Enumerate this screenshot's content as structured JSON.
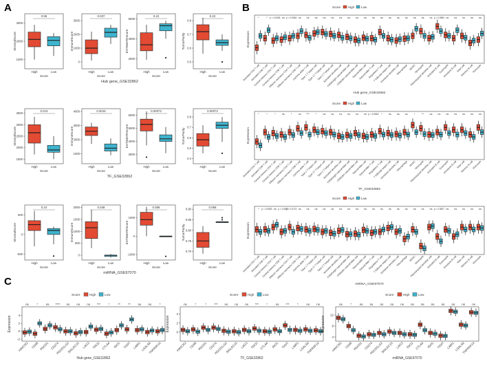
{
  "panel_labels": {
    "a": "A",
    "b": "B",
    "c": "C"
  },
  "colors": {
    "high": "#e34a33",
    "low": "#3eb4cf",
    "axis": "#444444",
    "text": "#333333"
  },
  "chart_data": {
    "a": {
      "type": "boxplot",
      "groups": [
        "High",
        "Low"
      ],
      "xlabel": "Score",
      "rows": [
        {
          "title": "Hub gene_GSE32862",
          "plots": [
            {
              "ylabel": "StromalScore",
              "p": "0.96",
              "ticks": [
                "1000",
                "2000",
                "3000"
              ],
              "ylim": [
                500,
                3500
              ],
              "boxes": [
                [
                  1000,
                  1700,
                  2100,
                  2500,
                  2900
                ],
                [
                  1200,
                  1750,
                  2050,
                  2250,
                  2450
                ]
              ],
              "outliers": [
                [],
                []
              ]
            },
            {
              "ylabel": "ImmuneScore",
              "p": "0.037",
              "ticks": [
                "0",
                "1000",
                "2000",
                "3000"
              ],
              "ylim": [
                -500,
                3500
              ],
              "boxes": [
                [
                  100,
                  600,
                  1000,
                  1600,
                  2200
                ],
                [
                  1300,
                  1800,
                  2150,
                  2450,
                  2700
                ]
              ],
              "outliers": [
                [],
                []
              ]
            },
            {
              "ylabel": "ESTIMATEScore",
              "p": "0.22",
              "ticks": [
                "2000",
                "4000",
                "6000"
              ],
              "ylim": [
                1000,
                6500
              ],
              "boxes": [
                [
                  1900,
                  2800,
                  3400,
                  4600,
                  5400
                ],
                [
                  4000,
                  4800,
                  5300,
                  5500,
                  5800
                ]
              ],
              "outliers": [
                [],
                [
                  2100
                ]
              ]
            },
            {
              "ylabel": "TumorPurity",
              "p": "0.22",
              "ticks": [
                "0.5",
                "0.6",
                "0.7",
                "0.8"
              ],
              "ylim": [
                0.45,
                0.85
              ],
              "boxes": [
                [
                  0.56,
                  0.66,
                  0.72,
                  0.77,
                  0.82
                ],
                [
                  0.58,
                  0.62,
                  0.64,
                  0.66,
                  0.7
                ]
              ],
              "outliers": [
                [],
                [
                  0.5
                ]
              ]
            }
          ]
        },
        {
          "title": "TF_GSE32862",
          "plots": [
            {
              "ylabel": "StromalScore",
              "p": "0.013",
              "ticks": [
                "1500",
                "2000",
                "2500",
                "3000",
                "3500"
              ],
              "ylim": [
                1300,
                3700
              ],
              "boxes": [
                [
                  1700,
                  2200,
                  2650,
                  3000,
                  3350
                ],
                [
                  1500,
                  1800,
                  1900,
                  2100,
                  2500
                ]
              ],
              "outliers": [
                [],
                []
              ]
            },
            {
              "ylabel": "ImmuneScore",
              "p": "0.0015",
              "ticks": [
                "1000",
                "2000",
                "3000",
                "4000"
              ],
              "ylim": [
                300,
                4200
              ],
              "boxes": [
                [
                  1700,
                  2300,
                  2600,
                  2900,
                  3200
                ],
                [
                  900,
                  1200,
                  1400,
                  1700,
                  2100
                ]
              ],
              "outliers": [
                [],
                []
              ]
            },
            {
              "ylabel": "ESTIMATEScore",
              "p": "0.00072",
              "ticks": [
                "3000",
                "4000",
                "5000",
                "6000"
              ],
              "ylim": [
                2300,
                6500
              ],
              "boxes": [
                [
                  3700,
                  4800,
                  5300,
                  5700,
                  6300
                ],
                [
                  3100,
                  4000,
                  4200,
                  4500,
                  5100
                ]
              ],
              "outliers": [
                [
                  2800
                ],
                []
              ]
            },
            {
              "ylabel": "TumorPurity",
              "p": "0.00072",
              "ticks": [
                "0.4",
                "0.5",
                "0.6",
                "0.7",
                "0.8"
              ],
              "ylim": [
                0.35,
                0.88
              ],
              "boxes": [
                [
                  0.45,
                  0.52,
                  0.58,
                  0.64,
                  0.72
                ],
                [
                  0.56,
                  0.69,
                  0.72,
                  0.75,
                  0.8
                ]
              ],
              "outliers": [
                [],
                [
                  0.45
                ]
              ]
            }
          ]
        },
        {
          "title": "miRNA_GSE97070",
          "plots": [
            {
              "ylabel": "StromalScore",
              "p": "0.24",
              "ticks": [
                "-500",
                "0",
                "500"
              ],
              "ylim": [
                -650,
                750
              ],
              "boxes": [
                [
                  -300,
                  100,
                  250,
                  350,
                  600
                ],
                [
                  -250,
                  0,
                  100,
                  150,
                  200
                ]
              ],
              "outliers": [
                [],
                [
                  -550
                ]
              ]
            },
            {
              "ylabel": "ImmuneScore",
              "p": "0.048",
              "ticks": [
                "0",
                "500",
                "1000",
                "1500",
                "2000"
              ],
              "ylim": [
                -200,
                2100
              ],
              "boxes": [
                [
                  300,
                  700,
                  1150,
                  1400,
                  1900
                ],
                [
                  -100,
                  -50,
                  0,
                  0,
                  50
                ]
              ],
              "outliers": [
                [],
                []
              ]
            },
            {
              "ylabel": "ESTIMATEScore",
              "p": "0.058",
              "ticks": [
                "-1000",
                "0",
                "1000"
              ],
              "ylim": [
                -1300,
                1700
              ],
              "boxes": [
                [
                  0,
                  600,
                  900,
                  1300,
                  1600
                ],
                [
                  0,
                  0,
                  0,
                  0,
                  0
                ]
              ],
              "outliers": [
                [],
                [
                  -1100
                ]
              ]
            },
            {
              "ylabel": "TumorPurity",
              "p": "0.058",
              "ticks": [
                "0.70",
                "0.75",
                "0.80",
                "0.85",
                "0.90"
              ],
              "ylim": [
                0.66,
                0.92
              ],
              "boxes": [
                [
                  0.69,
                  0.72,
                  0.75,
                  0.79,
                  0.82
                ],
                [
                  0.84,
                  0.84,
                  0.84,
                  0.84,
                  0.84
                ]
              ],
              "outliers": [
                [],
                [
                  0.85,
                  0.86
                ]
              ]
            }
          ]
        }
      ]
    },
    "b": {
      "type": "boxplot",
      "legend_title": "Score",
      "legend": [
        "High",
        "Low"
      ],
      "ylabel": "Expression",
      "categories": [
        "Activated CD4 T cell",
        "Activated CD8 T cell",
        "Central memory CD4 T cell",
        "Central memory CD8 T cell",
        "Effector memeory CD4 T cell",
        "Effector memeory CD8 T cell",
        "Gamma delta T cell",
        "Type 1 T helper cell",
        "Type 17 T helper cell",
        "Type 2 T helper cell",
        "Activated dendritic cell",
        "CD56bright natural killer cell",
        "CD56dim natural killer cell",
        "Natural killer cell",
        "Natural killer T cell",
        "Regulatory T cell",
        "T follicular helper cell",
        "Immature dendritic cell",
        "Macrophage",
        "MDSC",
        "Neutrophil",
        "Plasmacytoid dendritic cell",
        "Activated B cell",
        "Eosinophil",
        "Immature B cell",
        "Mast cell",
        "Memory B cell",
        "Monocyte"
      ],
      "rows": [
        {
          "title": "Hub gene_GSE32862",
          "sig": [
            "*",
            "*",
            "p = 0.0605",
            "ns",
            "p = 0.0564",
            "ns",
            "ns",
            "ns",
            "ns",
            "ns",
            "ns",
            "ns",
            "ns",
            "ns",
            "ns",
            "ns",
            "ns",
            "ns",
            "ns",
            "ns",
            "ns",
            "ns",
            "p = 0.0984",
            "ns",
            "ns",
            "ns",
            "ns",
            "ns"
          ],
          "high_med": [
            -0.15,
            0.05,
            0.0,
            0.02,
            0.05,
            0.1,
            0.12,
            0.15,
            0.18,
            0.14,
            0.12,
            0.08,
            0.02,
            0.06,
            0.05,
            0.18,
            0.05,
            0.0,
            0.04,
            0.1,
            0.2,
            0.05,
            0.3,
            0.12,
            0.05,
            0.1,
            -0.05,
            0.02
          ],
          "low_med": [
            0.1,
            0.22,
            0.05,
            0.07,
            0.1,
            0.2,
            0.06,
            0.18,
            0.14,
            0.1,
            0.06,
            0.05,
            0.0,
            0.04,
            0.02,
            0.1,
            0.02,
            0.03,
            0.05,
            0.25,
            0.1,
            0.08,
            0.2,
            0.1,
            0.22,
            0.06,
            0.0,
            0.15
          ]
        },
        {
          "title": "TF_GSE32862",
          "sig": [
            "*",
            "*",
            "*",
            "ns",
            "*",
            "ns",
            "***",
            "*",
            "ns",
            "ns",
            "ns",
            "ns",
            "ns",
            "ns",
            "p = 0.0662",
            "*",
            "ns",
            "ns",
            "ns",
            "*",
            "**",
            "ns",
            "ns",
            "ns",
            "ns",
            "ns",
            "ns",
            "ns"
          ],
          "high_med": [
            -0.1,
            0.1,
            0.08,
            0.05,
            0.1,
            0.18,
            0.2,
            0.15,
            0.12,
            0.1,
            0.02,
            0.04,
            0.08,
            0.02,
            0.05,
            0.12,
            0.08,
            0.06,
            0.1,
            0.25,
            0.18,
            0.05,
            0.1,
            0.2,
            0.15,
            0.15,
            0.05,
            0.2
          ],
          "low_med": [
            -0.18,
            0.0,
            0.02,
            0.0,
            0.04,
            0.08,
            0.05,
            0.1,
            0.08,
            0.05,
            0.0,
            0.02,
            0.04,
            0.0,
            0.02,
            0.05,
            0.04,
            0.03,
            0.05,
            0.1,
            0.06,
            0.04,
            0.05,
            0.08,
            0.05,
            0.08,
            0.0,
            0.1
          ]
        },
        {
          "title": "miRNA_GSE97070",
          "sig": [
            "*",
            "p = 0.0583",
            "ns",
            "p = 0.0607",
            "p = 0.0714",
            "ns",
            "ns",
            "ns",
            "ns",
            "ns",
            "ns",
            "ns",
            "ns",
            "ns",
            "ns",
            "ns",
            "ns",
            "ns",
            "ns",
            "ns",
            "ns",
            "ns",
            "p = 0.0827",
            "ns",
            "ns",
            "ns",
            "ns",
            "ns"
          ],
          "high_med": [
            0.05,
            0.05,
            0.1,
            0.0,
            0.1,
            0.08,
            0.05,
            0.06,
            0.0,
            -0.02,
            0.02,
            -0.05,
            -0.04,
            0.04,
            -0.02,
            0.0,
            0.08,
            0.0,
            -0.15,
            0.05,
            -0.3,
            0.1,
            -0.1,
            0.05,
            -0.1,
            0.1,
            0.1,
            0.1
          ],
          "low_med": [
            0.0,
            0.02,
            0.15,
            0.02,
            0.0,
            0.06,
            0.02,
            0.04,
            0.02,
            -0.04,
            0.04,
            -0.05,
            -0.06,
            0.02,
            0.0,
            0.05,
            0.1,
            0.02,
            -0.1,
            0.0,
            -0.35,
            0.12,
            -0.2,
            0.02,
            -0.05,
            0.05,
            0.05,
            0.08
          ]
        }
      ]
    },
    "c": {
      "type": "boxplot",
      "legend_title": "Score",
      "legend": [
        "High",
        "Low"
      ],
      "ylabel": "Expression",
      "categories": [
        "HAVCR2",
        "CD48",
        "PDCD1",
        "CD274",
        "PDCD1LG2",
        "SIGLEC15",
        "LAG3",
        "TDO2",
        "CTLA4",
        "IDO1",
        "TIGIT",
        "LAIR1",
        "LGALS9",
        "TNFRSF14"
      ],
      "plots": [
        {
          "title": "Hub gene_GSE32862",
          "sig": [
            "ns",
            "*",
            "ns",
            "****",
            "ns",
            "ns",
            "ns",
            "***",
            "*",
            "**",
            "**",
            "ns",
            "ns",
            "*"
          ],
          "ticks": [
            "-2",
            "0",
            "2",
            "4"
          ],
          "ylim": [
            -2.5,
            5.5
          ],
          "high_med": [
            -0.3,
            -0.6,
            0.6,
            1.0,
            0.0,
            -0.5,
            -0.2,
            0.4,
            -0.6,
            0.3,
            0.5,
            0.3,
            -0.2,
            0.0
          ],
          "low_med": [
            -0.1,
            2.0,
            1.5,
            0.5,
            0.0,
            -0.2,
            1.2,
            0.6,
            -0.3,
            1.5,
            3.0,
            0.5,
            0.2,
            0.3
          ]
        },
        {
          "title": "TF_GSE32862",
          "sig": [
            "ns",
            "*",
            "*",
            "***",
            "ns",
            "ns",
            "ns",
            "***",
            "*",
            "ns",
            "***",
            "*",
            "ns",
            "ns"
          ],
          "ticks": [
            "0",
            "2",
            "4"
          ],
          "ylim": [
            -2,
            5
          ],
          "high_med": [
            0.5,
            0.6,
            1.0,
            1.0,
            0.3,
            0.2,
            0.5,
            0.8,
            0.2,
            0.6,
            1.5,
            0.5,
            0.6,
            0.4
          ],
          "low_med": [
            0.2,
            0.1,
            0.5,
            0.7,
            0.1,
            0.0,
            0.2,
            0.3,
            0.1,
            0.2,
            0.5,
            0.3,
            0.3,
            0.2
          ]
        },
        {
          "title": "miRNA_GSE97070",
          "sig": [
            "ns",
            "*",
            "ns",
            "ns",
            "ns",
            "ns",
            "ns",
            "ns",
            "ns",
            "ns",
            "ns",
            "ns",
            "ns",
            "ns"
          ],
          "ticks": [
            "4",
            "8",
            "12"
          ],
          "ylim": [
            2.5,
            14
          ],
          "high_med": [
            11.0,
            8.0,
            4.5,
            5.0,
            5.5,
            6.0,
            5.5,
            5.0,
            8.5,
            5.5,
            4.5,
            13.5,
            8.5,
            13.0
          ],
          "low_med": [
            10.5,
            6.5,
            4.2,
            4.8,
            5.0,
            5.5,
            5.0,
            4.8,
            6.5,
            5.2,
            4.4,
            13.2,
            8.2,
            12.8
          ]
        }
      ]
    }
  }
}
